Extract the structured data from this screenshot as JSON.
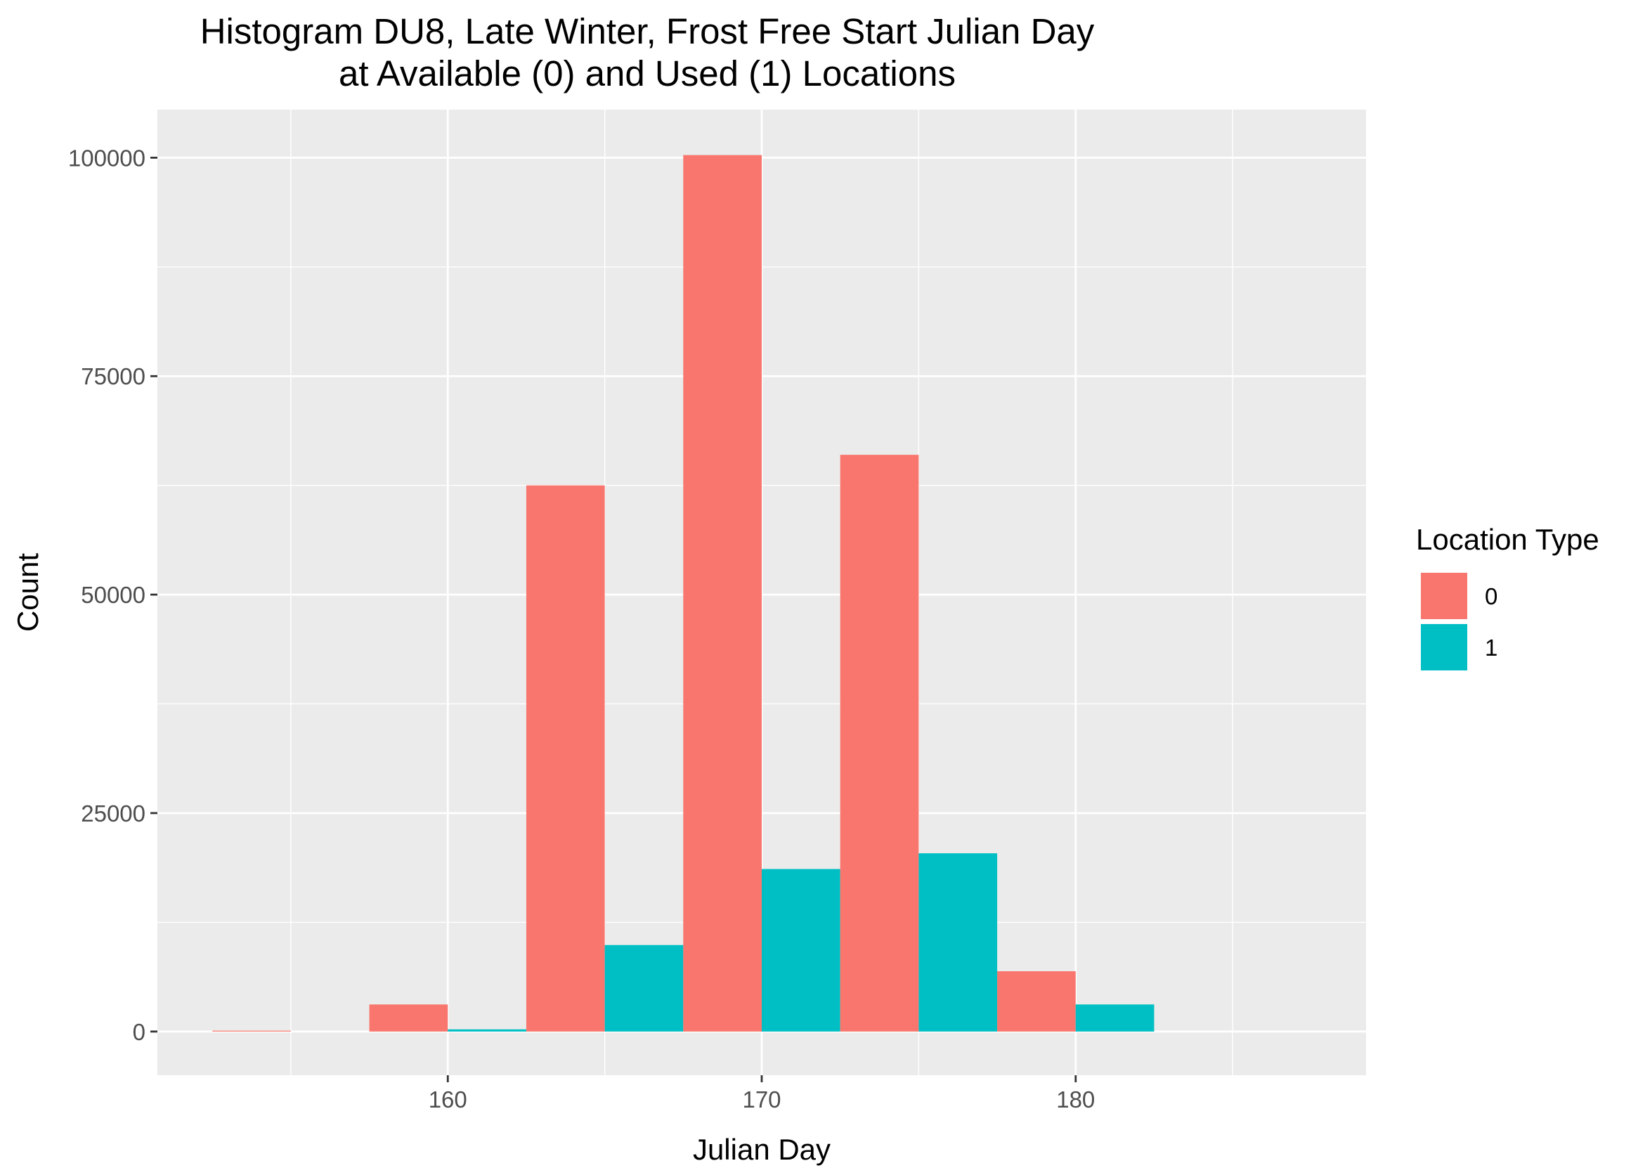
{
  "chart_data": {
    "type": "bar",
    "title_lines": [
      "Histogram DU8, Late Winter, Frost Free Start Julian Day",
      "at Available (0) and Used (1) Locations"
    ],
    "xlabel": "Julian Day",
    "ylabel": "Count",
    "xlim": [
      150.75,
      189.25
    ],
    "ylim": [
      -5000,
      105500
    ],
    "x_ticks": [
      160,
      170,
      180
    ],
    "x_tick_labels": [
      "160",
      "170",
      "180"
    ],
    "y_ticks": [
      0,
      25000,
      50000,
      75000,
      100000
    ],
    "y_tick_labels": [
      "0",
      "25000",
      "50000",
      "75000",
      "100000"
    ],
    "x_minor_ticks": [
      155,
      165,
      175,
      185
    ],
    "y_minor_ticks": [
      12500,
      37500,
      62500,
      87500
    ],
    "grid": true,
    "legend": {
      "title": "Location Type",
      "position": "right",
      "entries": [
        {
          "label": "0",
          "color": "#F8766D"
        },
        {
          "label": "1",
          "color": "#00BFC4"
        }
      ]
    },
    "bin_width": 5,
    "bins": [
      155,
      160,
      165,
      170,
      175,
      180,
      185
    ],
    "series": [
      {
        "name": "0",
        "color": "#F8766D",
        "values": [
          100,
          3100,
          62500,
          100300,
          66000,
          6900,
          0
        ]
      },
      {
        "name": "1",
        "color": "#00BFC4",
        "values": [
          0,
          250,
          9900,
          18600,
          20400,
          3100,
          0
        ]
      }
    ],
    "panel_background": "#EBEBEB",
    "grid_color": "#FFFFFF"
  }
}
